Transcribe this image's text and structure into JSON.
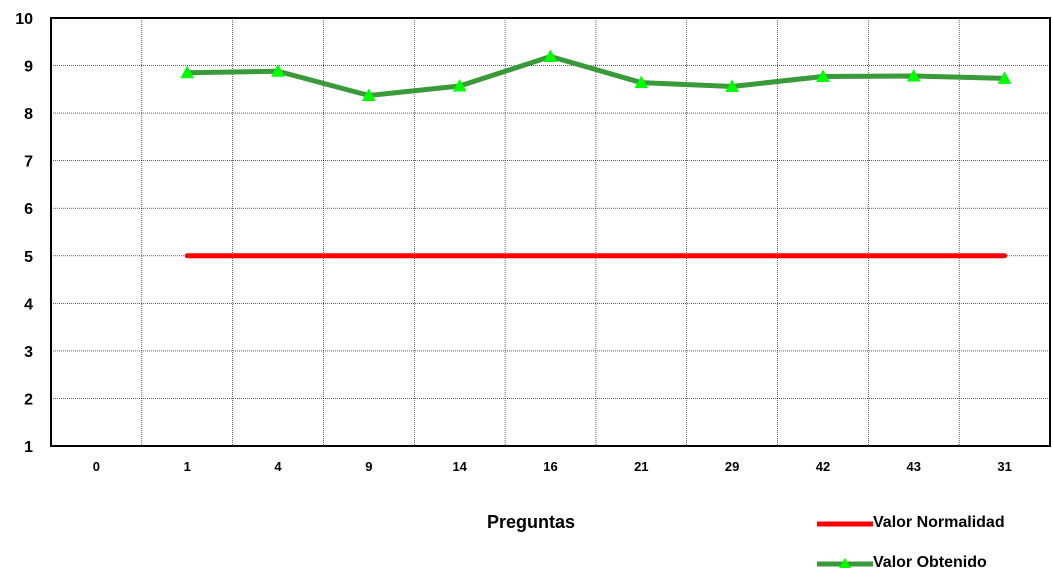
{
  "chart_data": {
    "type": "line",
    "categories": [
      "0",
      "1",
      "4",
      "9",
      "14",
      "16",
      "21",
      "29",
      "42",
      "43",
      "31"
    ],
    "series": [
      {
        "name": "Valor Normalidad",
        "color": "#ff0000",
        "marker": "none",
        "values": [
          null,
          5,
          5,
          5,
          5,
          5,
          5,
          5,
          5,
          5,
          5
        ]
      },
      {
        "name": "Valor Obtenido",
        "color": "#3a9a3a",
        "marker": "triangle",
        "marker_color": "#00ff00",
        "values": [
          null,
          8.85,
          8.88,
          8.37,
          8.57,
          9.19,
          8.64,
          8.56,
          8.77,
          8.78,
          8.73
        ]
      }
    ],
    "xlabel": "Preguntas",
    "ylabel": "",
    "ylim": [
      1,
      10
    ],
    "yticks": [
      "1",
      "2",
      "3",
      "4",
      "5",
      "6",
      "7",
      "8",
      "9",
      "10"
    ],
    "grid": true,
    "legend_position": "bottom-right"
  }
}
